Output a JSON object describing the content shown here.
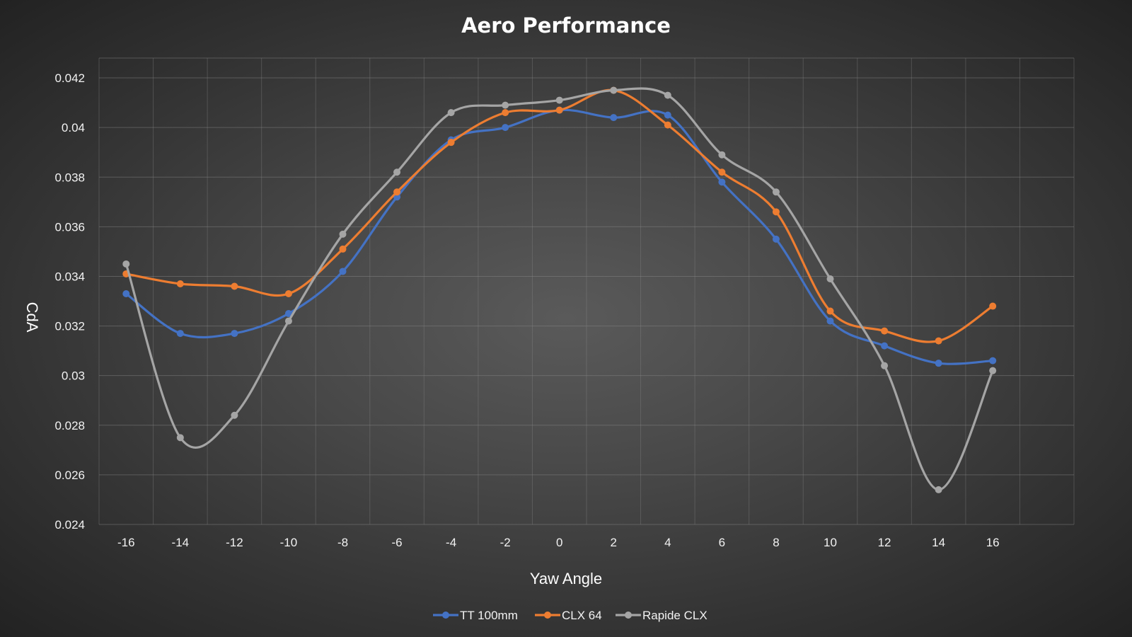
{
  "chart_data": {
    "type": "line",
    "title": "Aero Performance",
    "xlabel": "Yaw Angle",
    "ylabel": "CdA",
    "x": [
      -16,
      -14,
      -12,
      -10,
      -8,
      -6,
      -4,
      -2,
      0,
      2,
      4,
      6,
      8,
      10,
      12,
      14,
      16
    ],
    "x_tick_labels": [
      "-16",
      "-14",
      "-12",
      "-10",
      "-8",
      "-6",
      "-4",
      "-2",
      "0",
      "2",
      "4",
      "6",
      "8",
      "10",
      "12",
      "14",
      "16"
    ],
    "y_tick_labels": [
      "0.024",
      "0.026",
      "0.028",
      "0.03",
      "0.032",
      "0.034",
      "0.036",
      "0.038",
      "0.04",
      "0.042"
    ],
    "ylim": [
      0.024,
      0.0428
    ],
    "grid": true,
    "smooth": true,
    "legend_position": "bottom",
    "series": [
      {
        "name": "TT 100mm",
        "color": "#4472C4",
        "values": [
          0.0333,
          0.0317,
          0.0317,
          0.0325,
          0.0342,
          0.0372,
          0.0395,
          0.04,
          0.0407,
          0.0404,
          0.0405,
          0.0378,
          0.0355,
          0.0322,
          0.0312,
          0.0305,
          0.0306
        ]
      },
      {
        "name": "CLX 64",
        "color": "#ED7D31",
        "values": [
          0.0341,
          0.0337,
          0.0336,
          0.0333,
          0.0351,
          0.0374,
          0.0394,
          0.0406,
          0.0407,
          0.0415,
          0.0401,
          0.0382,
          0.0366,
          0.0326,
          0.0318,
          0.0314,
          0.0328
        ]
      },
      {
        "name": "Rapide CLX",
        "color": "#A5A5A5",
        "values": [
          0.0345,
          0.0275,
          0.0284,
          0.0322,
          0.0357,
          0.0382,
          0.0406,
          0.0409,
          0.0411,
          0.0415,
          0.0413,
          0.0389,
          0.0374,
          0.0339,
          0.0304,
          0.0254,
          0.0302
        ]
      }
    ]
  }
}
